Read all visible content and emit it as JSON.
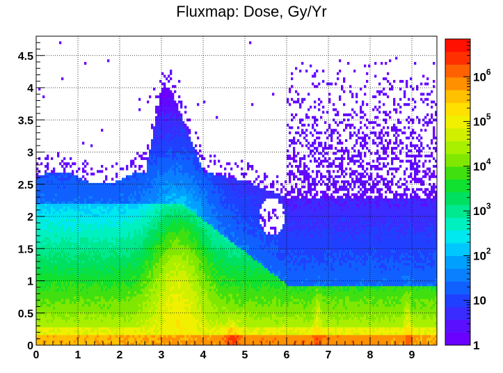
{
  "chart_data": {
    "type": "heatmap",
    "title": "Fluxmap: Dose, Gy/Yr",
    "xlabel": "",
    "ylabel": "",
    "xlim": [
      0,
      9.6
    ],
    "ylim": [
      0,
      4.8
    ],
    "x_ticks": [
      "0",
      "1",
      "2",
      "3",
      "4",
      "5",
      "6",
      "7",
      "8",
      "9"
    ],
    "y_ticks": [
      "0",
      "0.5",
      "1",
      "1.5",
      "2",
      "2.5",
      "3",
      "3.5",
      "4",
      "4.5"
    ],
    "grid": true,
    "z_scale": "log",
    "z_range": [
      1,
      7000000
    ],
    "colorbar_ticks": [
      {
        "base": "1",
        "exp": "",
        "value": 1
      },
      {
        "base": "10",
        "exp": "",
        "value": 10
      },
      {
        "base": "10",
        "exp": "2",
        "value": 100
      },
      {
        "base": "10",
        "exp": "3",
        "value": 1000
      },
      {
        "base": "10",
        "exp": "4",
        "value": 10000
      },
      {
        "base": "10",
        "exp": "5",
        "value": 100000
      },
      {
        "base": "10",
        "exp": "6",
        "value": 1000000
      }
    ],
    "colorbar_palette": [
      "#6a00ff",
      "#5a10ff",
      "#3a2cff",
      "#2040ff",
      "#1060ff",
      "#0a80ff",
      "#00a0ff",
      "#00c8ff",
      "#00e8f0",
      "#00f0c0",
      "#00e890",
      "#00e060",
      "#10e030",
      "#40e010",
      "#80e800",
      "#a8f000",
      "#d0f000",
      "#f0f000",
      "#ffe000",
      "#ffc000",
      "#ff9000",
      "#ff6000",
      "#ff3000",
      "#ff1000"
    ]
  }
}
